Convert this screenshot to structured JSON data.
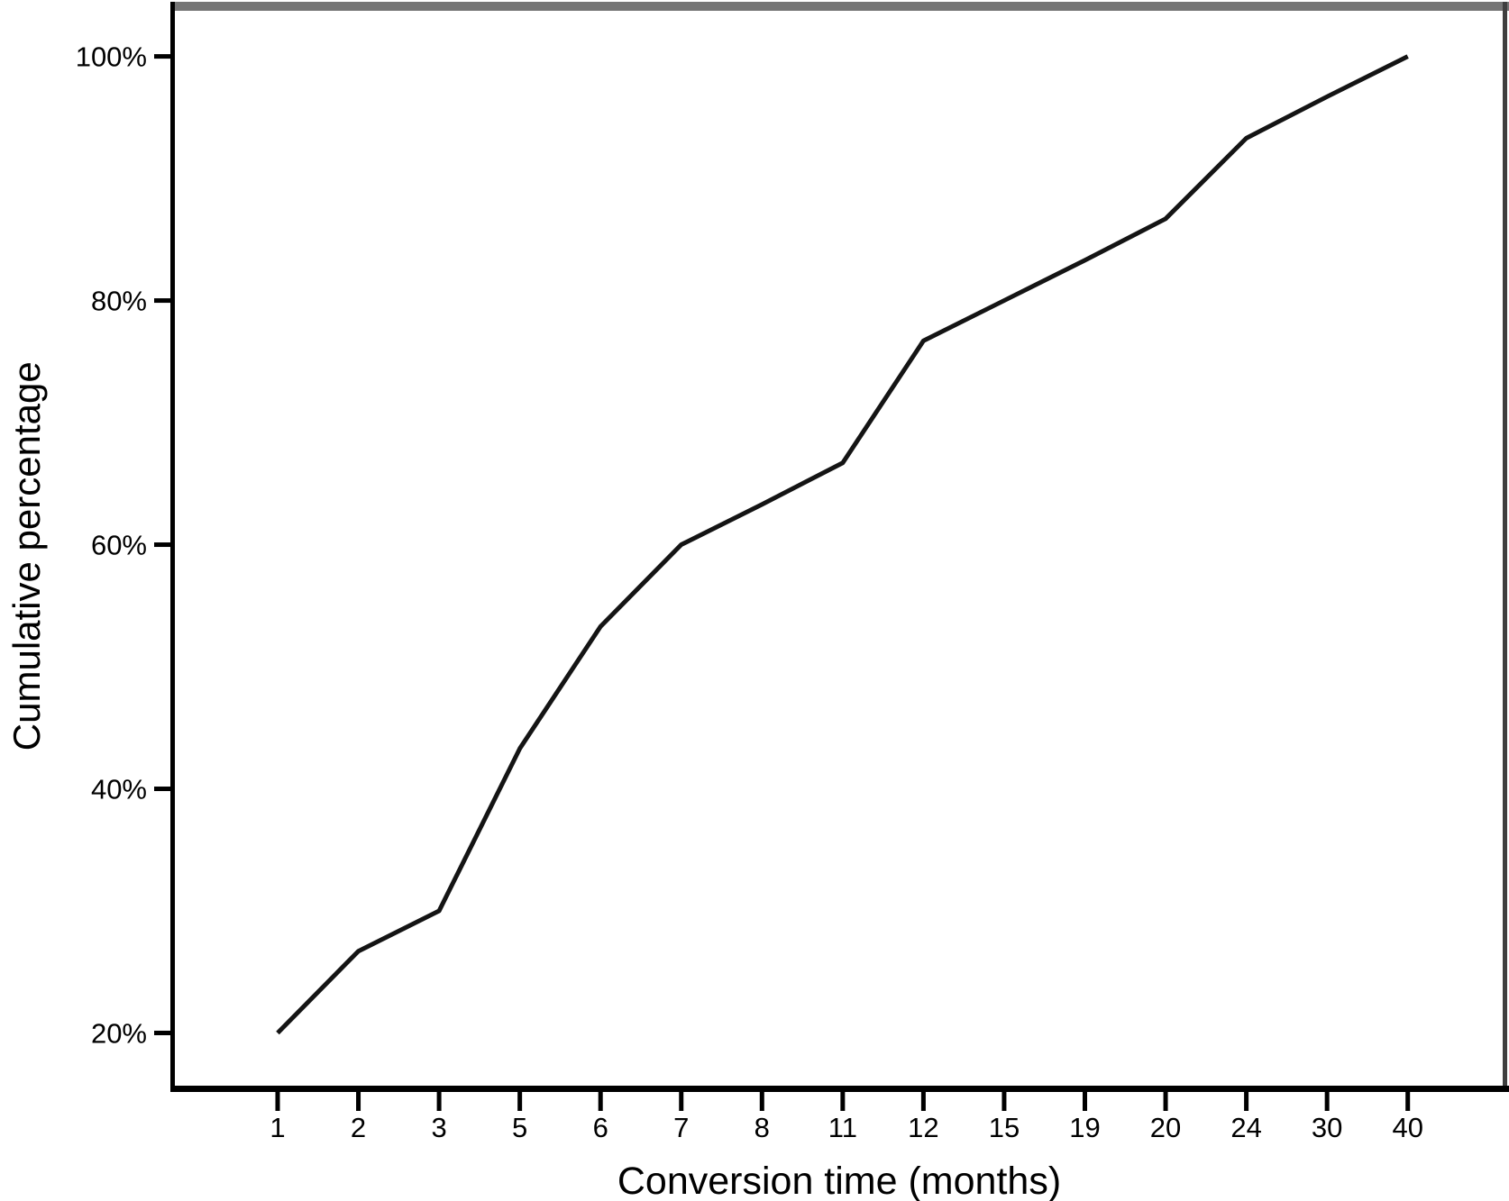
{
  "page": {
    "background": "#ffffff"
  },
  "chart_data": {
    "type": "line",
    "title": "",
    "xlabel": "Conversion time (months)",
    "ylabel": "Cumulative percentage",
    "x_axis_type": "categorical-equal-spacing",
    "categories": [
      1,
      2,
      3,
      5,
      6,
      7,
      8,
      11,
      12,
      15,
      19,
      20,
      24,
      30,
      40
    ],
    "x_tick_labels": [
      "1",
      "2",
      "3",
      "5",
      "6",
      "7",
      "8",
      "11",
      "12",
      "15",
      "19",
      "20",
      "24",
      "30",
      "40"
    ],
    "values_cumulative_percent": [
      20,
      26.7,
      30,
      43.3,
      53.3,
      60,
      63.3,
      66.7,
      76.7,
      80,
      83.3,
      86.7,
      93.3,
      96.7,
      100
    ],
    "series": [
      {
        "name": "cumulative-percentage",
        "values": [
          20,
          26.7,
          30,
          43.3,
          53.3,
          60,
          63.3,
          66.7,
          76.7,
          80,
          83.3,
          86.7,
          93.3,
          96.7,
          100
        ]
      }
    ],
    "y_ticks": [
      {
        "value": 20,
        "label": "20%"
      },
      {
        "value": 40,
        "label": "40%"
      },
      {
        "value": 60,
        "label": "60%"
      },
      {
        "value": 80,
        "label": "80%"
      },
      {
        "value": 100,
        "label": "100%"
      }
    ],
    "ylim": [
      15.46,
      104.03
    ],
    "grid": false,
    "legend": "none",
    "colors": {
      "line": "#141414",
      "axis": "#000000",
      "text": "#000000",
      "frame_top": "#757575",
      "frame_right": "#3f3f3f"
    }
  }
}
